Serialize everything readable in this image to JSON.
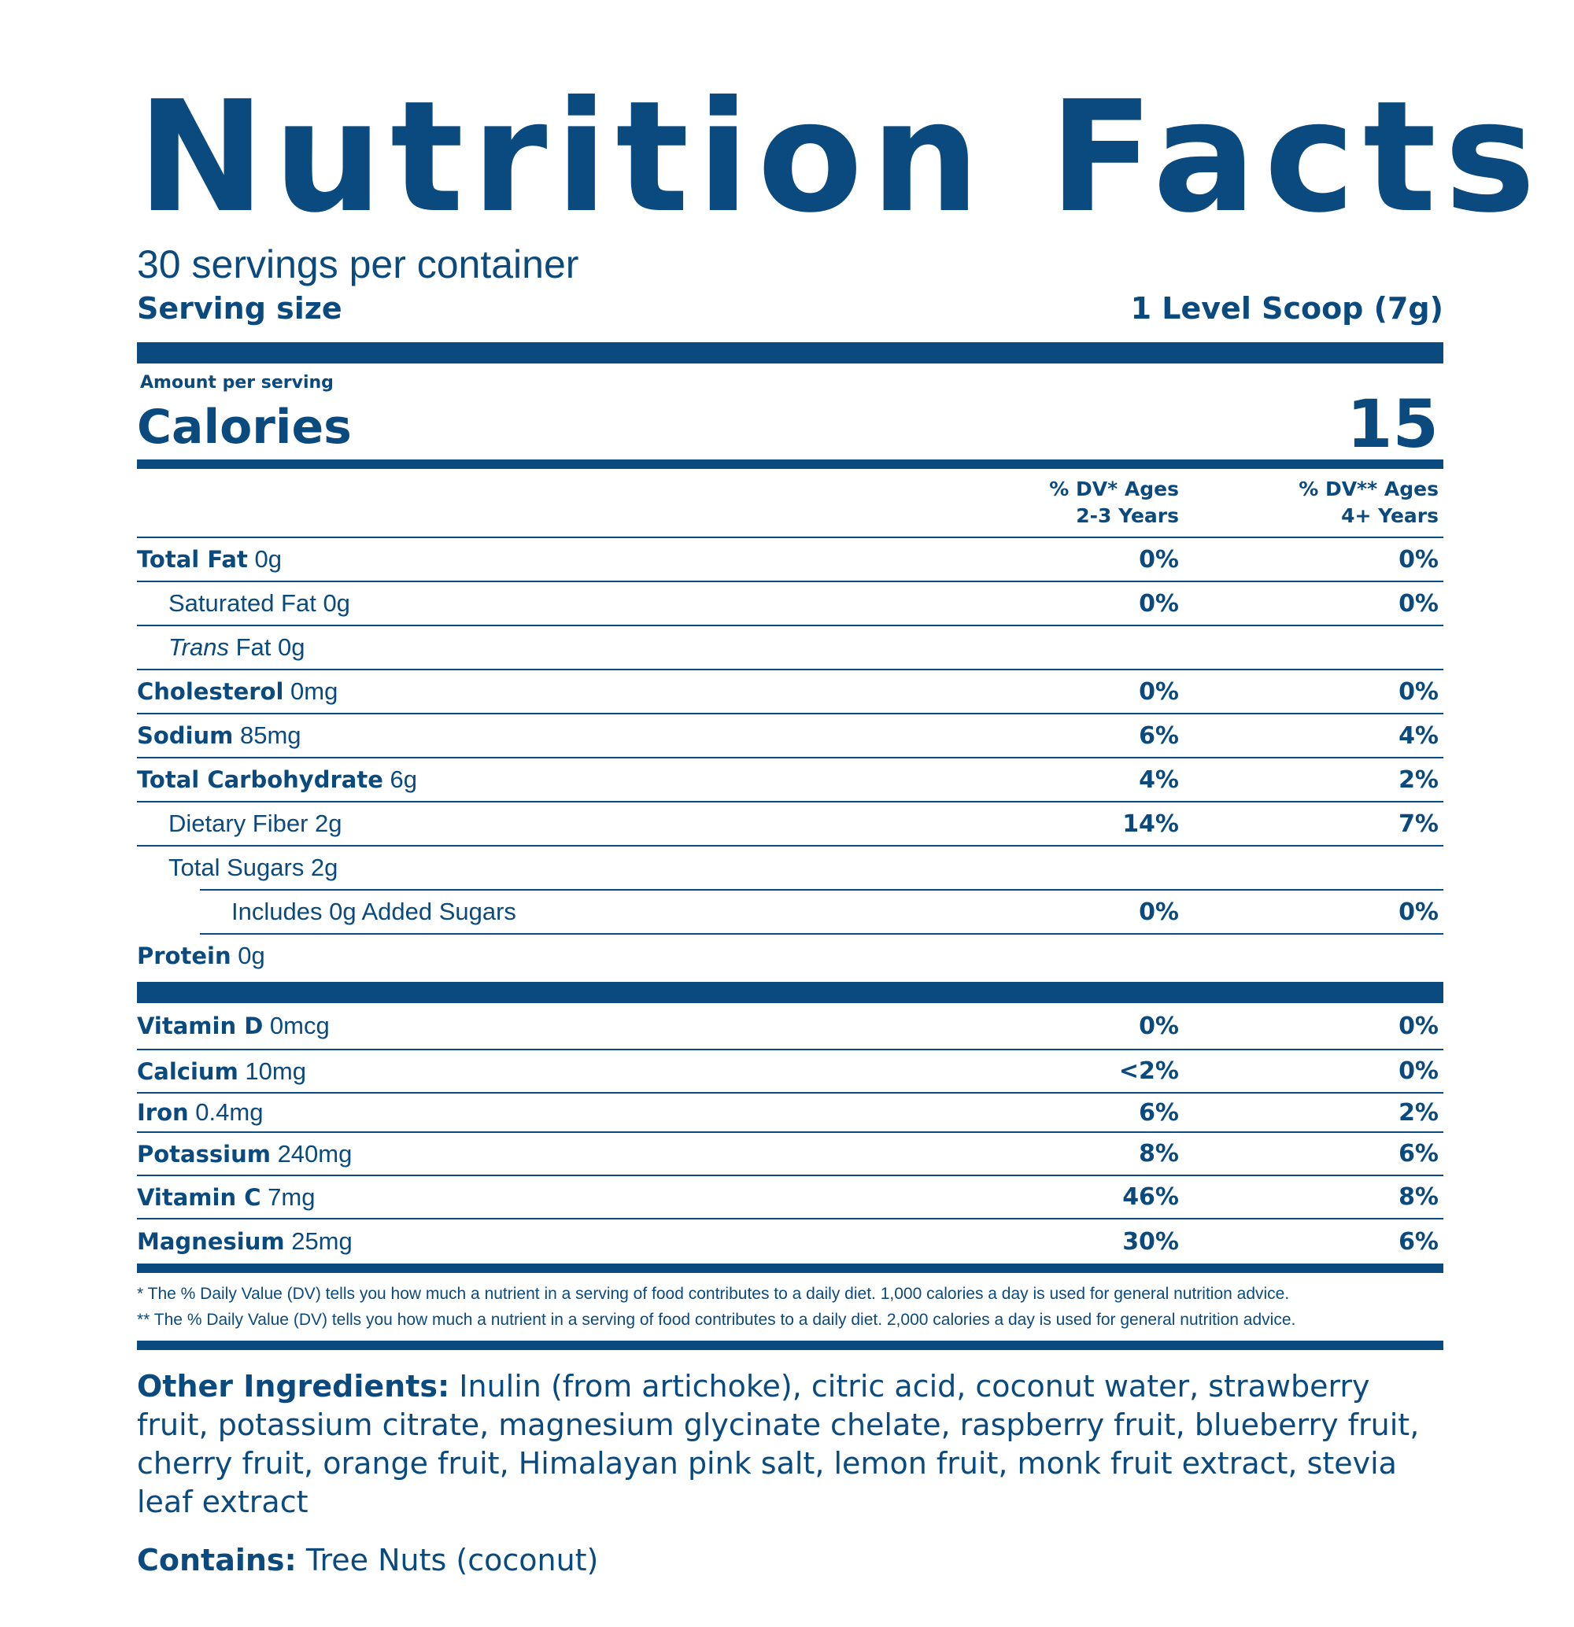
{
  "title": "Nutrition Facts",
  "servings_per_container": "30 servings per container",
  "serving_size": {
    "label": "Serving size",
    "value": "1 Level Scoop (7g)"
  },
  "amount_per_serving": "Amount per serving",
  "calories": {
    "label": "Calories",
    "value": "15"
  },
  "dv_headers": {
    "a_line1": "% DV* Ages",
    "a_line2": "2-3 Years",
    "b_line1": "% DV** Ages",
    "b_line2": "4+ Years"
  },
  "nutrients": [
    {
      "name": "Total Fat",
      "amount": "0g",
      "dv_a": "0%",
      "dv_b": "0%"
    },
    {
      "name": "Saturated Fat 0g",
      "dv_a": "0%",
      "dv_b": "0%"
    },
    {
      "name_italic": "Trans",
      "name_rest": "Fat 0g"
    },
    {
      "name": "Cholesterol",
      "amount": "0mg",
      "dv_a": "0%",
      "dv_b": "0%"
    },
    {
      "name": "Sodium",
      "amount": "85mg",
      "dv_a": "6%",
      "dv_b": "4%"
    },
    {
      "name": "Total Carbohydrate",
      "amount": "6g",
      "dv_a": "4%",
      "dv_b": "2%"
    },
    {
      "name": "Dietary Fiber 2g",
      "dv_a": "14%",
      "dv_b": "7%"
    },
    {
      "name": "Total Sugars 2g"
    },
    {
      "name": "Includes 0g Added Sugars",
      "dv_a": "0%",
      "dv_b": "0%"
    },
    {
      "name": "Protein",
      "amount": "0g"
    }
  ],
  "vitamins": [
    {
      "name": "Vitamin D",
      "amount": "0mcg",
      "dv_a": "0%",
      "dv_b": "0%"
    },
    {
      "name": "Calcium",
      "amount": "10mg",
      "dv_a": "<2%",
      "dv_b": "0%"
    },
    {
      "name": "Iron",
      "amount": "0.4mg",
      "dv_a": "6%",
      "dv_b": "2%"
    },
    {
      "name": "Potassium",
      "amount": "240mg",
      "dv_a": "8%",
      "dv_b": "6%"
    },
    {
      "name": "Vitamin C",
      "amount": "7mg",
      "dv_a": "46%",
      "dv_b": "8%"
    },
    {
      "name": "Magnesium",
      "amount": "25mg",
      "dv_a": "30%",
      "dv_b": "6%"
    }
  ],
  "footnotes": [
    "* The % Daily Value (DV) tells you how much a nutrient in a serving of food contributes to a daily diet. 1,000 calories a day is used for general nutrition advice.",
    "** The % Daily Value (DV) tells you how much a nutrient in a serving of food contributes to a daily diet. 2,000 calories a day is used for general nutrition advice."
  ],
  "other_ingredients": {
    "label": "Other Ingredients:",
    "text": "Inulin (from artichoke), citric acid, coconut water, strawberry fruit, potassium citrate, magnesium glycinate chelate, raspberry fruit, blueberry fruit, cherry fruit, orange fruit, Himalayan pink salt, lemon fruit, monk fruit extract, stevia leaf extract"
  },
  "contains": {
    "label": "Contains:",
    "text": "Tree Nuts (coconut)"
  },
  "colors": {
    "primary": "#0b4a7e",
    "background": "#ffffff"
  }
}
